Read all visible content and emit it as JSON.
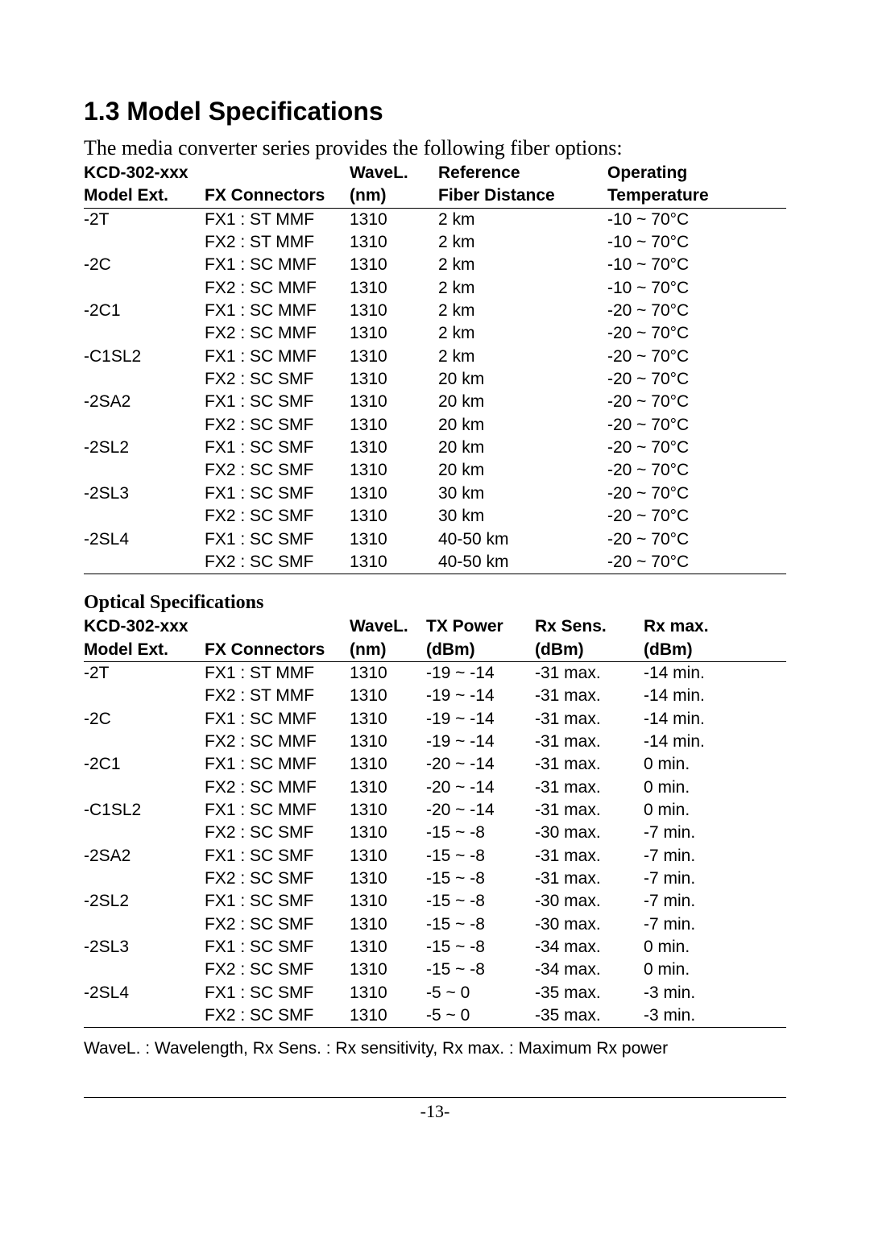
{
  "heading": "1.3 Model Specifications",
  "intro": "The media converter series provides the following fiber options:",
  "table1": {
    "header": {
      "c0a": "KCD-302-xxx",
      "c0b": "Model Ext.",
      "c1a": "",
      "c1b": "FX Connectors",
      "c2a": "WaveL.",
      "c2b": "(nm)",
      "c3a": "Reference",
      "c3b": "Fiber Distance",
      "c4a": "Operating",
      "c4b": "Temperature"
    },
    "rows": [
      {
        "m": "-2T",
        "fx": "FX1 : ST MMF",
        "wl": "1310",
        "r": "2 km",
        "t": "-10 ~ 70°C"
      },
      {
        "m": "",
        "fx": "FX2 : ST MMF",
        "wl": "1310",
        "r": "2 km",
        "t": "-10 ~ 70°C"
      },
      {
        "m": "-2C",
        "fx": "FX1 : SC MMF",
        "wl": "1310",
        "r": "2 km",
        "t": "-10 ~ 70°C"
      },
      {
        "m": "",
        "fx": "FX2 : SC MMF",
        "wl": "1310",
        "r": "2 km",
        "t": "-10 ~ 70°C"
      },
      {
        "m": "-2C1",
        "fx": "FX1 : SC MMF",
        "wl": "1310",
        "r": "2 km",
        "t": "-20 ~ 70°C"
      },
      {
        "m": "",
        "fx": "FX2 : SC MMF",
        "wl": "1310",
        "r": "2 km",
        "t": "-20 ~ 70°C"
      },
      {
        "m": "-C1SL2",
        "fx": "FX1 : SC MMF",
        "wl": "1310",
        "r": "2 km",
        "t": "-20 ~ 70°C"
      },
      {
        "m": "",
        "fx": "FX2 : SC SMF",
        "wl": "1310",
        "r": "20 km",
        "t": "-20 ~ 70°C"
      },
      {
        "m": "-2SA2",
        "fx": "FX1 : SC SMF",
        "wl": "1310",
        "r": "20 km",
        "t": "-20 ~ 70°C"
      },
      {
        "m": "",
        "fx": "FX2 : SC SMF",
        "wl": "1310",
        "r": "20 km",
        "t": "-20 ~ 70°C"
      },
      {
        "m": "-2SL2",
        "fx": "FX1 : SC SMF",
        "wl": "1310",
        "r": "20 km",
        "t": "-20 ~ 70°C"
      },
      {
        "m": "",
        "fx": "FX2 : SC SMF",
        "wl": "1310",
        "r": "20 km",
        "t": "-20 ~ 70°C"
      },
      {
        "m": "-2SL3",
        "fx": "FX1 : SC SMF",
        "wl": "1310",
        "r": "30 km",
        "t": "-20 ~ 70°C"
      },
      {
        "m": "",
        "fx": "FX2 : SC SMF",
        "wl": "1310",
        "r": "30 km",
        "t": "-20 ~ 70°C"
      },
      {
        "m": "-2SL4",
        "fx": "FX1 : SC SMF",
        "wl": "1310",
        "r": "40-50 km",
        "t": "-20 ~ 70°C"
      },
      {
        "m": "",
        "fx": "FX2 : SC SMF",
        "wl": "1310",
        "r": "40-50 km",
        "t": "-20 ~ 70°C"
      }
    ]
  },
  "sub_heading": "Optical Specifications",
  "table2": {
    "header": {
      "c0a": "KCD-302-xxx",
      "c0b": "Model Ext.",
      "c1a": "",
      "c1b": "FX Connectors",
      "c2a": "WaveL.",
      "c2b": "(nm)",
      "c3a": "TX Power",
      "c3b": "(dBm)",
      "c4a": "Rx Sens.",
      "c4b": "(dBm)",
      "c5a": "Rx max.",
      "c5b": "(dBm)"
    },
    "rows": [
      {
        "m": "-2T",
        "fx": "FX1 : ST MMF",
        "wl": "1310",
        "tx": "-19 ~ -14",
        "rs": "-31 max.",
        "rm": "-14 min."
      },
      {
        "m": "",
        "fx": "FX2 : ST MMF",
        "wl": "1310",
        "tx": "-19 ~ -14",
        "rs": "-31 max.",
        "rm": "-14 min."
      },
      {
        "m": "-2C",
        "fx": "FX1 : SC MMF",
        "wl": "1310",
        "tx": "-19 ~ -14",
        "rs": "-31 max.",
        "rm": "-14 min."
      },
      {
        "m": "",
        "fx": "FX2 : SC MMF",
        "wl": "1310",
        "tx": "-19 ~ -14",
        "rs": "-31 max.",
        "rm": "-14 min."
      },
      {
        "m": "-2C1",
        "fx": "FX1 : SC MMF",
        "wl": "1310",
        "tx": "-20 ~ -14",
        "rs": "-31 max.",
        "rm": "0 min."
      },
      {
        "m": "",
        "fx": "FX2 : SC MMF",
        "wl": "1310",
        "tx": "-20 ~ -14",
        "rs": "-31 max.",
        "rm": "0 min."
      },
      {
        "m": "-C1SL2",
        "fx": "FX1 : SC MMF",
        "wl": "1310",
        "tx": "-20 ~ -14",
        "rs": "-31 max.",
        "rm": "0 min."
      },
      {
        "m": "",
        "fx": "FX2 : SC SMF",
        "wl": "1310",
        "tx": "-15 ~ -8",
        "rs": "-30 max.",
        "rm": "-7 min."
      },
      {
        "m": "-2SA2",
        "fx": "FX1 : SC SMF",
        "wl": "1310",
        "tx": "-15 ~ -8",
        "rs": "-31 max.",
        "rm": "-7 min."
      },
      {
        "m": "",
        "fx": "FX2 : SC SMF",
        "wl": "1310",
        "tx": "-15 ~ -8",
        "rs": "-31 max.",
        "rm": "-7 min."
      },
      {
        "m": "-2SL2",
        "fx": "FX1 : SC SMF",
        "wl": "1310",
        "tx": "-15 ~ -8",
        "rs": "-30 max.",
        "rm": "-7 min."
      },
      {
        "m": "",
        "fx": "FX2 : SC SMF",
        "wl": "1310",
        "tx": "-15 ~ -8",
        "rs": "-30 max.",
        "rm": "-7 min."
      },
      {
        "m": "-2SL3",
        "fx": "FX1 : SC SMF",
        "wl": "1310",
        "tx": "-15 ~ -8",
        "rs": "-34 max.",
        "rm": "0 min."
      },
      {
        "m": "",
        "fx": "FX2 : SC SMF",
        "wl": "1310",
        "tx": "-15 ~ -8",
        "rs": "-34 max.",
        "rm": "0 min."
      },
      {
        "m": "-2SL4",
        "fx": "FX1 : SC SMF",
        "wl": "1310",
        "tx": "-5 ~ 0",
        "rs": "-35 max.",
        "rm": "-3 min."
      },
      {
        "m": "",
        "fx": "FX2 : SC SMF",
        "wl": "1310",
        "tx": "-5 ~ 0",
        "rs": "-35 max.",
        "rm": "-3 min."
      }
    ]
  },
  "footnote": "WaveL. : Wavelength, Rx Sens. : Rx sensitivity, Rx max. : Maximum Rx power",
  "page_number": "-13-"
}
